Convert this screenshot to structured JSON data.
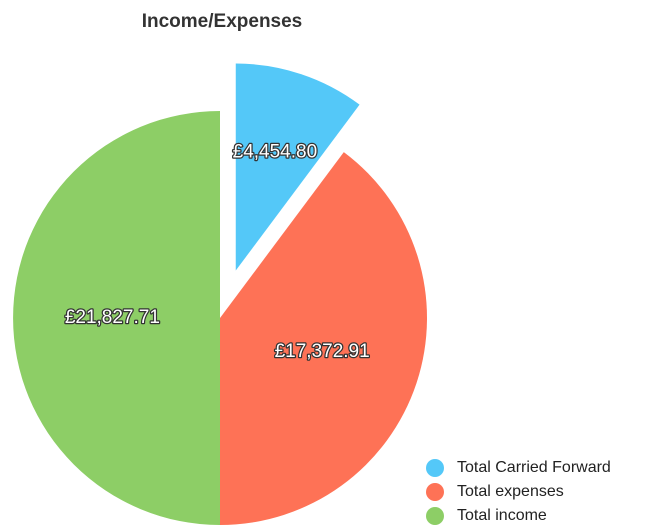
{
  "chart_data": {
    "type": "pie",
    "title": "Income/Expenses",
    "categories": [
      "Total Carried Forward",
      "Total expenses",
      "Total income"
    ],
    "values": [
      4454.8,
      17372.91,
      21827.71
    ],
    "value_labels": [
      "£4,454.80",
      "£17,372.91",
      "£21,827.71"
    ],
    "colors": [
      "#54c8f8",
      "#fe7256",
      "#8dce66"
    ],
    "legend": "bottom-right"
  }
}
